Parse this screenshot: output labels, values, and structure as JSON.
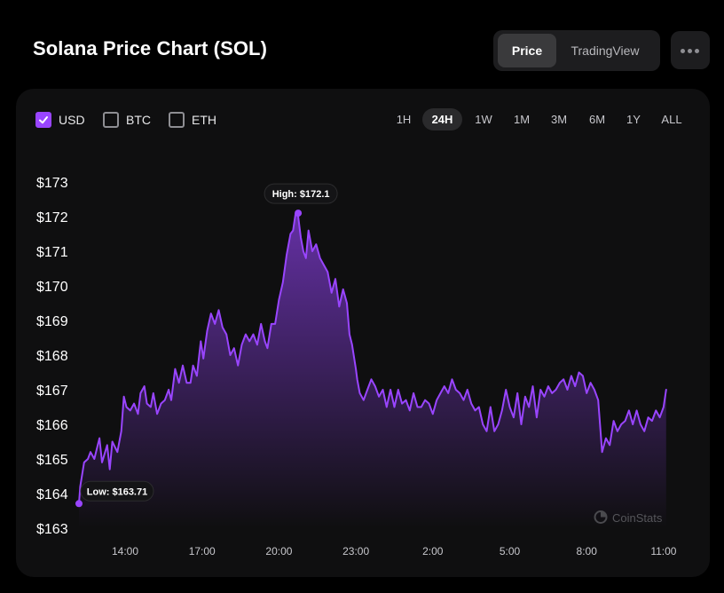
{
  "header": {
    "title": "Solana Price Chart (SOL)",
    "view_options": [
      "Price",
      "TradingView"
    ],
    "active_view": "Price",
    "more_icon": "ellipsis-icon"
  },
  "currencies": [
    {
      "label": "USD",
      "checked": true
    },
    {
      "label": "BTC",
      "checked": false
    },
    {
      "label": "ETH",
      "checked": false
    }
  ],
  "time_ranges": [
    "1H",
    "24H",
    "1W",
    "1M",
    "3M",
    "6M",
    "1Y",
    "ALL"
  ],
  "active_range": "24H",
  "watermark": "CoinStats",
  "colors": {
    "accent": "#9945ff",
    "background": "#000000",
    "panel": "#0f0f10"
  },
  "chart_data": {
    "type": "area",
    "title": "",
    "xlabel": "",
    "ylabel": "",
    "x_unit": "hours",
    "ylim": [
      163,
      173
    ],
    "yticks": [
      173,
      172,
      171,
      170,
      169,
      168,
      167,
      166,
      165,
      164,
      163
    ],
    "ytick_labels": [
      "$173",
      "$172",
      "$171",
      "$170",
      "$169",
      "$168",
      "$167",
      "$166",
      "$165",
      "$164",
      "$163"
    ],
    "xlim": [
      12.15,
      35.15
    ],
    "xticks": [
      14,
      17,
      20,
      23,
      26,
      29,
      32,
      35
    ],
    "xtick_labels": [
      "14:00",
      "17:00",
      "20:00",
      "23:00",
      "2:00",
      "5:00",
      "8:00",
      "11:00"
    ],
    "grid": false,
    "legend": "none",
    "annotations": {
      "high": {
        "label": "High: $172.1",
        "x": 20.75,
        "y": 172.1
      },
      "low": {
        "label": "Low: $163.71",
        "x": 12.2,
        "y": 163.71
      }
    },
    "series": [
      {
        "x": [
          12.2,
          12.25,
          12.4,
          12.55,
          12.65,
          12.8,
          12.9,
          13.0,
          13.1,
          13.3,
          13.4,
          13.5,
          13.7,
          13.85,
          13.95,
          14.05,
          14.2,
          14.35,
          14.5,
          14.6,
          14.75,
          14.85,
          15.0,
          15.1,
          15.25,
          15.4,
          15.55,
          15.7,
          15.8,
          15.95,
          16.1,
          16.25,
          16.4,
          16.55,
          16.65,
          16.8,
          16.95,
          17.05,
          17.2,
          17.35,
          17.5,
          17.65,
          17.8,
          17.95,
          18.1,
          18.25,
          18.4,
          18.55,
          18.7,
          18.85,
          19.0,
          19.15,
          19.3,
          19.45,
          19.55,
          19.7,
          19.85,
          20.0,
          20.15,
          20.3,
          20.45,
          20.55,
          20.65,
          20.75,
          20.85,
          20.95,
          21.05,
          21.15,
          21.3,
          21.45,
          21.6,
          21.75,
          21.9,
          22.05,
          22.2,
          22.35,
          22.5,
          22.65,
          22.75,
          22.85,
          23.0,
          23.05,
          23.15,
          23.3,
          23.45,
          23.6,
          23.75,
          23.9,
          24.05,
          24.2,
          24.35,
          24.5,
          24.65,
          24.8,
          24.95,
          25.1,
          25.25,
          25.4,
          25.55,
          25.7,
          25.85,
          26.0,
          26.15,
          26.3,
          26.45,
          26.6,
          26.75,
          26.9,
          27.05,
          27.2,
          27.35,
          27.5,
          27.65,
          27.8,
          27.95,
          28.1,
          28.25,
          28.4,
          28.55,
          28.7,
          28.85,
          29.0,
          29.15,
          29.3,
          29.45,
          29.6,
          29.75,
          29.9,
          30.05,
          30.2,
          30.35,
          30.5,
          30.65,
          30.8,
          30.95,
          31.1,
          31.25,
          31.4,
          31.55,
          31.7,
          31.85,
          32.0,
          32.15,
          32.3,
          32.45,
          32.6,
          32.75,
          32.9,
          33.05,
          33.2,
          33.35,
          33.5,
          33.65,
          33.8,
          33.95,
          34.1,
          34.25,
          34.4,
          34.55,
          34.7,
          34.85,
          35.0,
          35.1
        ],
        "y": [
          163.71,
          164.2,
          164.9,
          165.0,
          165.2,
          165.0,
          165.3,
          165.6,
          164.9,
          165.4,
          164.7,
          165.5,
          165.2,
          165.8,
          166.8,
          166.5,
          166.4,
          166.6,
          166.3,
          166.9,
          167.1,
          166.6,
          166.5,
          166.9,
          166.3,
          166.6,
          166.7,
          167.0,
          166.7,
          167.6,
          167.2,
          167.7,
          167.2,
          167.2,
          167.7,
          167.4,
          168.4,
          167.9,
          168.7,
          169.2,
          168.9,
          169.3,
          168.8,
          168.6,
          168.0,
          168.2,
          167.7,
          168.3,
          168.6,
          168.4,
          168.6,
          168.3,
          168.9,
          168.4,
          168.2,
          168.9,
          168.9,
          169.6,
          170.1,
          170.9,
          171.5,
          171.6,
          172.1,
          172.0,
          171.4,
          171.0,
          170.8,
          171.6,
          171.0,
          171.2,
          170.8,
          170.6,
          170.4,
          169.8,
          170.2,
          169.4,
          169.9,
          169.5,
          168.6,
          168.3,
          167.6,
          167.3,
          166.9,
          166.7,
          167.0,
          167.3,
          167.1,
          166.8,
          167.0,
          166.5,
          167.0,
          166.5,
          167.0,
          166.6,
          166.7,
          166.4,
          166.9,
          166.5,
          166.5,
          166.7,
          166.6,
          166.3,
          166.7,
          166.9,
          167.1,
          166.9,
          167.3,
          167.0,
          166.9,
          166.7,
          167.0,
          166.6,
          166.4,
          166.5,
          166.0,
          165.8,
          166.5,
          165.8,
          166.0,
          166.4,
          167.0,
          166.5,
          166.2,
          166.9,
          166.0,
          166.8,
          166.5,
          167.1,
          166.2,
          167.0,
          166.8,
          167.1,
          166.9,
          167.0,
          167.2,
          167.3,
          167.0,
          167.4,
          167.1,
          167.5,
          167.4,
          166.9,
          167.2,
          167.0,
          166.7,
          165.2,
          165.6,
          165.4,
          166.1,
          165.8,
          166.0,
          166.1,
          166.4,
          166.0,
          166.4,
          166.0,
          165.8,
          166.2,
          166.1,
          166.4,
          166.2,
          166.5,
          167.0
        ]
      }
    ]
  }
}
